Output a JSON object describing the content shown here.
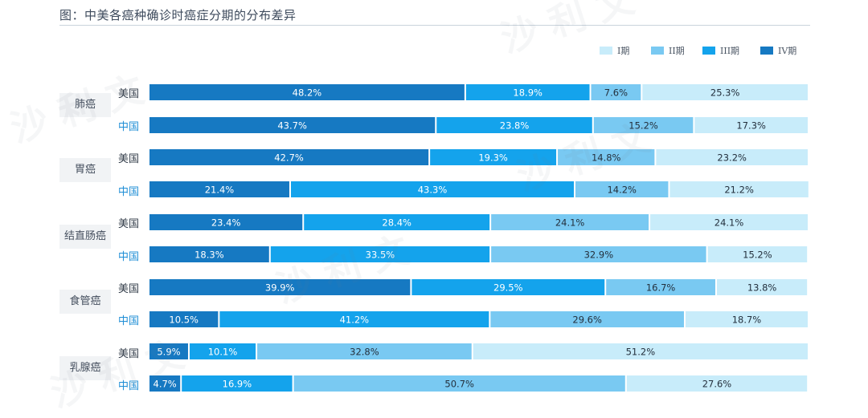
{
  "title": "图：中美各癌种确诊时癌症分期的分布差异",
  "chart_data": {
    "type": "bar",
    "orientation": "horizontal",
    "stacked": true,
    "normalized_percent": true,
    "xlim": [
      0,
      100
    ],
    "stages": [
      "I期",
      "II期",
      "III期",
      "IV期"
    ],
    "stage_colors": [
      "#c8ecfa",
      "#79c9f2",
      "#14a3ec",
      "#1679c2"
    ],
    "segment_order": [
      "IV期",
      "III期",
      "II期",
      "I期"
    ],
    "groups": [
      {
        "cancer": "肺癌",
        "rows": [
          {
            "country": "美国",
            "IV期": 48.2,
            "III期": 18.9,
            "II期": 7.6,
            "I期": 25.3
          },
          {
            "country": "中国",
            "IV期": 43.7,
            "III期": 23.8,
            "II期": 15.2,
            "I期": 17.3
          }
        ]
      },
      {
        "cancer": "胃癌",
        "rows": [
          {
            "country": "美国",
            "IV期": 42.7,
            "III期": 19.3,
            "II期": 14.8,
            "I期": 23.2
          },
          {
            "country": "中国",
            "IV期": 21.4,
            "III期": 43.3,
            "II期": 14.2,
            "I期": 21.2
          }
        ]
      },
      {
        "cancer": "结直肠癌",
        "rows": [
          {
            "country": "美国",
            "IV期": 23.4,
            "III期": 28.4,
            "II期": 24.1,
            "I期": 24.1
          },
          {
            "country": "中国",
            "IV期": 18.3,
            "III期": 33.5,
            "II期": 32.9,
            "I期": 15.2
          }
        ]
      },
      {
        "cancer": "食管癌",
        "rows": [
          {
            "country": "美国",
            "IV期": 39.9,
            "III期": 29.5,
            "II期": 16.7,
            "I期": 13.8
          },
          {
            "country": "中国",
            "IV期": 10.5,
            "III期": 41.2,
            "II期": 29.6,
            "I期": 18.7
          }
        ]
      },
      {
        "cancer": "乳腺癌",
        "rows": [
          {
            "country": "美国",
            "IV期": 5.9,
            "III期": 10.1,
            "II期": 32.8,
            "I期": 51.2
          },
          {
            "country": "中国",
            "IV期": 4.7,
            "III期": 16.9,
            "II期": 50.7,
            "I期": 27.6
          }
        ]
      }
    ]
  }
}
